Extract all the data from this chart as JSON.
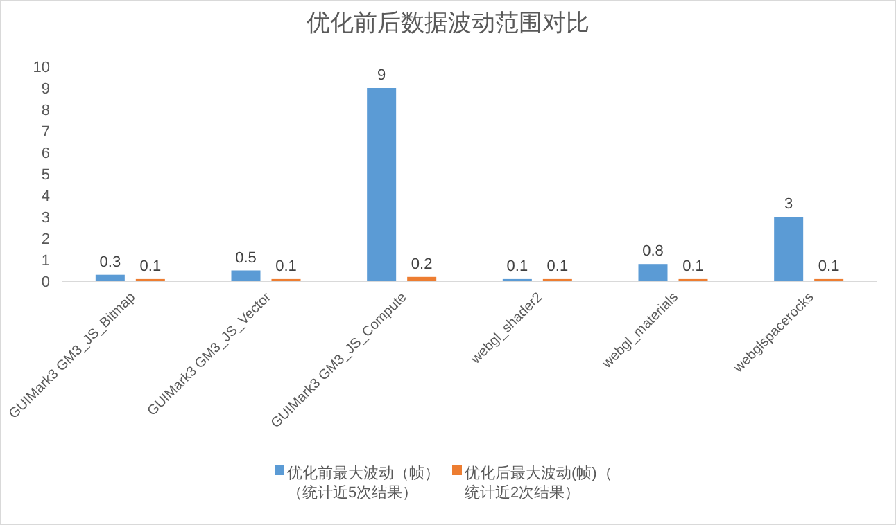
{
  "chart_data": {
    "type": "bar",
    "title": "优化前后数据波动范围对比",
    "categories": [
      "GUIMark3 GM3_JS_Bitmap",
      "GUIMark3 GM3_JS_Vector",
      "GUIMark3 GM3_JS_Compute",
      "webgl_shader2",
      "webgl_materials",
      "webglspacerocks"
    ],
    "series": [
      {
        "name": "优化前最大波动（帧）（统计近5次结果）",
        "color": "#5b9bd5",
        "values": [
          0.3,
          0.5,
          9,
          0.1,
          0.8,
          3
        ]
      },
      {
        "name": "优化后最大波动(帧)（统计近2次结果）",
        "color": "#ed7d31",
        "values": [
          0.1,
          0.1,
          0.2,
          0.1,
          0.1,
          0.1
        ]
      }
    ],
    "ylim": [
      0,
      10
    ],
    "yticks": [
      0,
      1,
      2,
      3,
      4,
      5,
      6,
      7,
      8,
      9,
      10
    ],
    "data_labels": true,
    "legend": "bottom",
    "grid": false
  }
}
